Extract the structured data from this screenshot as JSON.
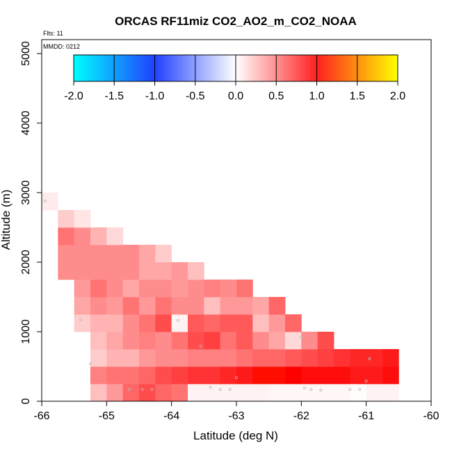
{
  "chart_data": {
    "type": "heatmap",
    "title": "ORCAS RF11miz CO2_AO2_m_CO2_NOAA",
    "flights_label": "Flts: 11",
    "date_label": "MMDD: 0212",
    "xlabel": "Latitude (deg N)",
    "ylabel": "Altitude (m)",
    "xlim": [
      -66,
      -60
    ],
    "ylim": [
      0,
      5200
    ],
    "x_ticks": [
      -66,
      -65,
      -64,
      -63,
      -62,
      -61,
      -60
    ],
    "y_ticks": [
      0,
      1000,
      2000,
      3000,
      4000,
      5000
    ],
    "colorbar": {
      "min": -2.0,
      "max": 2.0,
      "ticks": [
        "-2.0",
        "-1.5",
        "-1.0",
        "-0.5",
        "0.0",
        "0.5",
        "1.0",
        "1.5",
        "2.0"
      ],
      "colors": [
        "#00ffff",
        "#0000ff",
        "#ffffff",
        "#ff0000",
        "#ffff00"
      ]
    },
    "lat_bin": 0.25,
    "alt_bin": 250,
    "rows": [
      {
        "alt": 0,
        "lat_start": -65.25,
        "values": [
          0.25,
          0.4,
          0.6,
          0.7,
          0.6,
          0.55,
          0.05,
          0.05,
          0.05,
          0.05,
          0.05,
          0.03,
          0.03,
          0.03,
          0.03,
          0.03,
          0.01,
          0.05,
          0.05
        ]
      },
      {
        "alt": 250,
        "lat_start": -65.25,
        "values": [
          0.5,
          0.55,
          0.55,
          0.6,
          0.7,
          0.75,
          0.8,
          0.8,
          0.85,
          0.9,
          1.05,
          1.05,
          1.0,
          0.95,
          0.95,
          0.95,
          0.9,
          0.9,
          0.95
        ]
      },
      {
        "alt": 500,
        "lat_start": -65.25,
        "values": [
          0.2,
          0.3,
          0.3,
          0.4,
          0.45,
          0.45,
          0.5,
          0.5,
          0.5,
          0.55,
          0.6,
          0.6,
          0.65,
          0.7,
          0.75,
          0.8,
          0.85,
          0.85,
          0.9
        ]
      },
      {
        "alt": 750,
        "lat_start": -65.25,
        "values": [
          0.25,
          0.35,
          0.45,
          0.5,
          0.45,
          0.55,
          0.7,
          0.75,
          0.55,
          0.65,
          0.45,
          0.35,
          0.15,
          0.45,
          0.7
        ]
      },
      {
        "alt": 1000,
        "lat_start": -65.5,
        "values": [
          0.2,
          0.3,
          0.3,
          0.45,
          0.55,
          0.7,
          0.05,
          0.65,
          0.6,
          0.65,
          0.65,
          0.25,
          0.4,
          0.6
        ]
      },
      {
        "alt": 1250,
        "lat_start": -65.5,
        "values": [
          0.35,
          0.45,
          0.4,
          0.55,
          0.4,
          0.55,
          0.45,
          0.45,
          0.25,
          0.4,
          0.4,
          0.35,
          0.6
        ]
      },
      {
        "alt": 1500,
        "lat_start": -65.5,
        "values": [
          0.4,
          0.55,
          0.45,
          0.35,
          0.45,
          0.45,
          0.4,
          0.45,
          0.5,
          0.45,
          0.55
        ]
      },
      {
        "alt": 1750,
        "lat_start": -65.75,
        "values": [
          0.45,
          0.45,
          0.45,
          0.45,
          0.45,
          0.35,
          0.35,
          0.4,
          0.25
        ]
      },
      {
        "alt": 2000,
        "lat_start": -65.75,
        "values": [
          0.45,
          0.45,
          0.45,
          0.45,
          0.45,
          0.35,
          0.2
        ]
      },
      {
        "alt": 2250,
        "lat_start": -65.75,
        "values": [
          0.55,
          0.45,
          0.3,
          0.15
        ]
      },
      {
        "alt": 2500,
        "lat_start": -65.75,
        "values": [
          0.2,
          0.1
        ]
      },
      {
        "alt": 2750,
        "lat_start": -66.0,
        "values": [
          0.08
        ]
      }
    ],
    "points": [
      {
        "lat": -65.4,
        "alt": 1170
      },
      {
        "lat": -65.25,
        "alt": 540
      },
      {
        "lat": -65.95,
        "alt": 2880
      },
      {
        "lat": -64.65,
        "alt": 170
      },
      {
        "lat": -64.45,
        "alt": 170
      },
      {
        "lat": -64.3,
        "alt": 170
      },
      {
        "lat": -63.9,
        "alt": 1160
      },
      {
        "lat": -63.55,
        "alt": 790
      },
      {
        "lat": -63.4,
        "alt": 200
      },
      {
        "lat": -63.25,
        "alt": 170
      },
      {
        "lat": -63.1,
        "alt": 170
      },
      {
        "lat": -63.0,
        "alt": 340
      },
      {
        "lat": -62.0,
        "alt": 920
      },
      {
        "lat": -61.95,
        "alt": 190
      },
      {
        "lat": -61.85,
        "alt": 170
      },
      {
        "lat": -61.7,
        "alt": 160
      },
      {
        "lat": -61.25,
        "alt": 170
      },
      {
        "lat": -61.1,
        "alt": 170
      },
      {
        "lat": -61.0,
        "alt": 290
      },
      {
        "lat": -60.95,
        "alt": 610
      }
    ]
  }
}
